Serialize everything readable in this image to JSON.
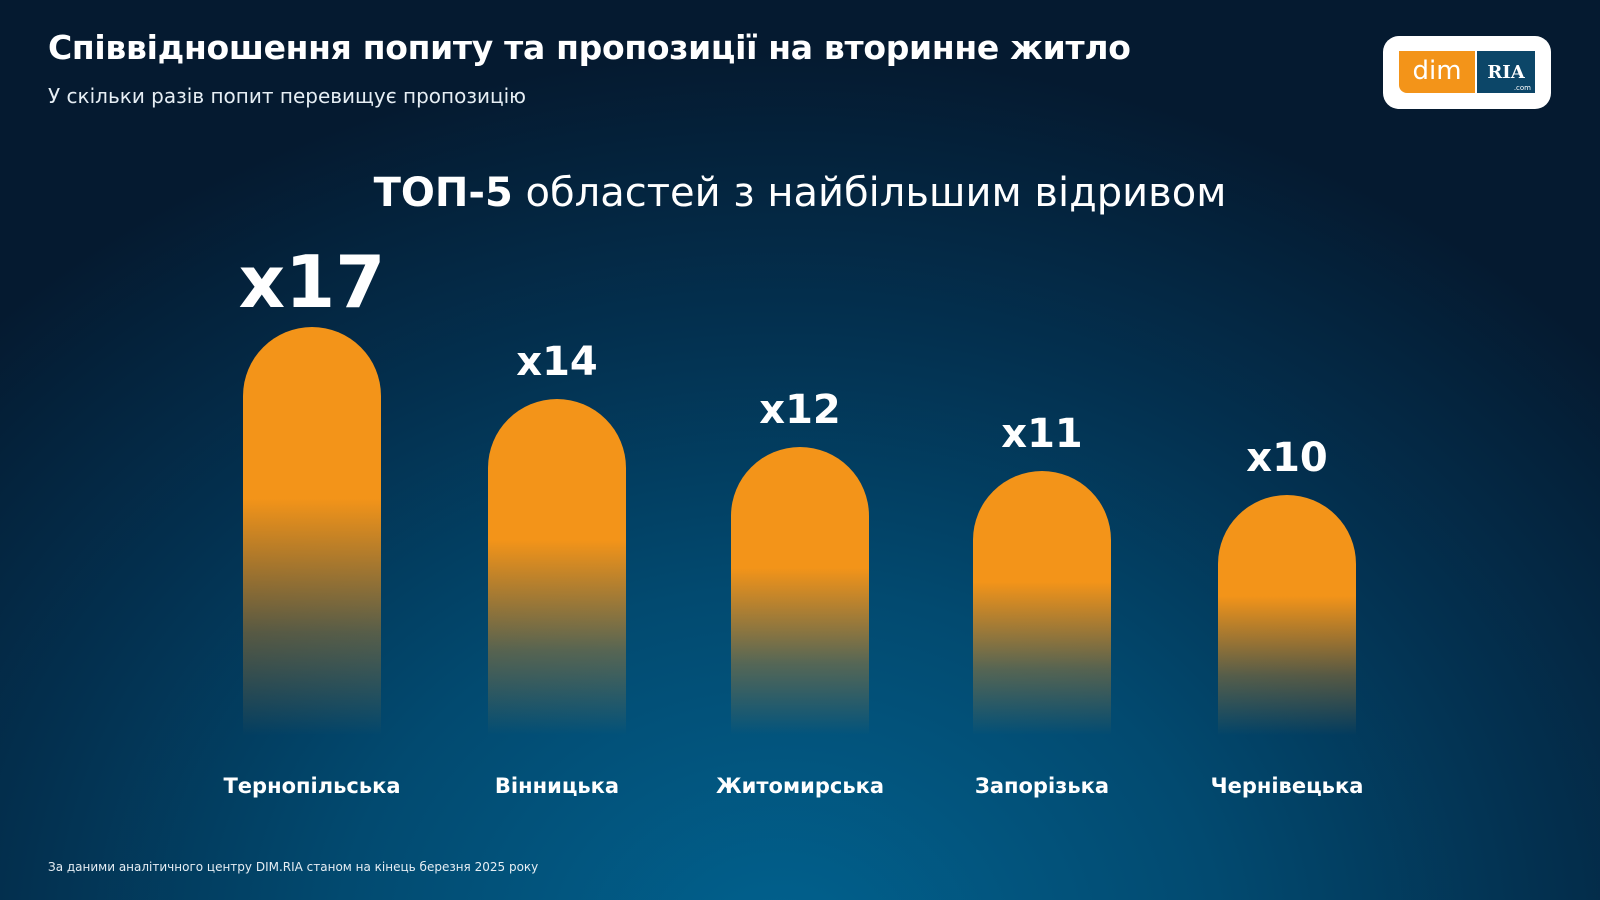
{
  "header": {
    "title": "Співвідношення попиту та пропозиції на вторинне житло",
    "subtitle": "У скільки разів попит перевищує пропозицію"
  },
  "logo": {
    "left": "dim",
    "right": "RIA",
    "suffix": ".com"
  },
  "colors": {
    "bar": "#f39419",
    "background": "#03304f"
  },
  "chart_data": {
    "type": "bar",
    "title_bold": "ТОП-5",
    "title_rest": " областей з найбільшим відривом",
    "categories": [
      "Тернопільська",
      "Вінницька",
      "Житомирська",
      "Запорізька",
      "Чернівецька"
    ],
    "values": [
      17,
      14,
      12,
      11,
      10
    ],
    "value_labels": [
      "x17",
      "x14",
      "x12",
      "x11",
      "x10"
    ],
    "xlabel": "",
    "ylabel": ""
  },
  "footer": {
    "source": "За даними аналітичного центру DIM.RIA станом на кінець березня 2025 року"
  }
}
